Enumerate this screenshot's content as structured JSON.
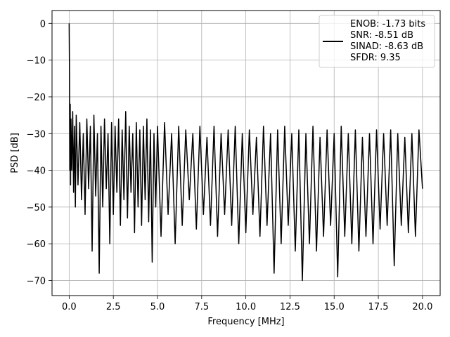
{
  "chart_data": {
    "type": "line",
    "title": "",
    "xlabel": "Frequency [MHz]",
    "ylabel": "PSD [dB]",
    "xlim": [
      -0.97,
      21.0
    ],
    "ylim": [
      -74.1,
      3.5
    ],
    "xticks": [
      0.0,
      2.5,
      5.0,
      7.5,
      10.0,
      12.5,
      15.0,
      17.5,
      20.0
    ],
    "xtick_labels": [
      "0.0",
      "2.5",
      "5.0",
      "7.5",
      "10.0",
      "12.5",
      "15.0",
      "17.5",
      "20.0"
    ],
    "yticks": [
      0,
      -10,
      -20,
      -30,
      -40,
      -50,
      -60,
      -70
    ],
    "ytick_labels": [
      "0",
      "−10",
      "−20",
      "−30",
      "−40",
      "−50",
      "−60",
      "−70"
    ],
    "grid": true,
    "legend": {
      "placement": "top-right",
      "entries": [
        "ENOB: -1.73 bits",
        "SNR: -8.51 dB",
        "SINAD: -8.63 dB",
        "SFDR: 9.35"
      ]
    },
    "series": [
      {
        "color": "#000000",
        "x": [
          0,
          0.02,
          0.04,
          0.06,
          0.08,
          0.1,
          0.15,
          0.2,
          0.25,
          0.3,
          0.35,
          0.4,
          0.5,
          0.6,
          0.7,
          0.8,
          0.9,
          1.0,
          1.1,
          1.2,
          1.3,
          1.4,
          1.5,
          1.6,
          1.7,
          1.8,
          1.9,
          2.0,
          2.1,
          2.2,
          2.3,
          2.4,
          2.5,
          2.6,
          2.7,
          2.8,
          2.9,
          3.0,
          3.1,
          3.2,
          3.3,
          3.4,
          3.5,
          3.6,
          3.7,
          3.8,
          3.9,
          4.0,
          4.1,
          4.2,
          4.3,
          4.4,
          4.5,
          4.6,
          4.7,
          4.8,
          4.9,
          5.0,
          5.2,
          5.4,
          5.6,
          5.8,
          6.0,
          6.2,
          6.4,
          6.6,
          6.8,
          7.0,
          7.2,
          7.4,
          7.6,
          7.8,
          8.0,
          8.2,
          8.4,
          8.6,
          8.8,
          9.0,
          9.2,
          9.4,
          9.6,
          9.8,
          10.0,
          10.2,
          10.4,
          10.6,
          10.8,
          11.0,
          11.2,
          11.4,
          11.6,
          11.8,
          12.0,
          12.2,
          12.4,
          12.6,
          12.8,
          13.0,
          13.2,
          13.4,
          13.6,
          13.8,
          14.0,
          14.2,
          14.4,
          14.6,
          14.8,
          15.0,
          15.2,
          15.4,
          15.6,
          15.8,
          16.0,
          16.2,
          16.4,
          16.6,
          16.8,
          17.0,
          17.2,
          17.4,
          17.6,
          17.8,
          18.0,
          18.2,
          18.4,
          18.6,
          18.8,
          19.0,
          19.2,
          19.4,
          19.6,
          19.8,
          20.0
        ],
        "y": [
          0,
          -14,
          -40,
          -22,
          -44,
          -26,
          -40,
          -24,
          -46,
          -28,
          -50,
          -25,
          -44,
          -27,
          -48,
          -30,
          -52,
          -26,
          -45,
          -28,
          -62,
          -25,
          -47,
          -30,
          -68,
          -28,
          -50,
          -26,
          -45,
          -30,
          -60,
          -27,
          -52,
          -28,
          -46,
          -26,
          -55,
          -29,
          -48,
          -24,
          -53,
          -28,
          -46,
          -30,
          -57,
          -27,
          -50,
          -29,
          -55,
          -28,
          -48,
          -26,
          -54,
          -29,
          -65,
          -30,
          -50,
          -28,
          -58,
          -27,
          -52,
          -30,
          -60,
          -28,
          -55,
          -29,
          -48,
          -30,
          -56,
          -28,
          -52,
          -31,
          -55,
          -28,
          -58,
          -30,
          -52,
          -29,
          -55,
          -28,
          -60,
          -30,
          -57,
          -29,
          -52,
          -31,
          -58,
          -28,
          -55,
          -30,
          -68,
          -29,
          -60,
          -28,
          -55,
          -30,
          -62,
          -29,
          -70,
          -30,
          -60,
          -28,
          -62,
          -31,
          -58,
          -29,
          -55,
          -30,
          -69,
          -28,
          -58,
          -30,
          -60,
          -29,
          -62,
          -31,
          -58,
          -30,
          -60,
          -29,
          -56,
          -30,
          -55,
          -29,
          -66,
          -30,
          -55,
          -31,
          -57,
          -30,
          -58,
          -29,
          -45
        ]
      }
    ]
  }
}
